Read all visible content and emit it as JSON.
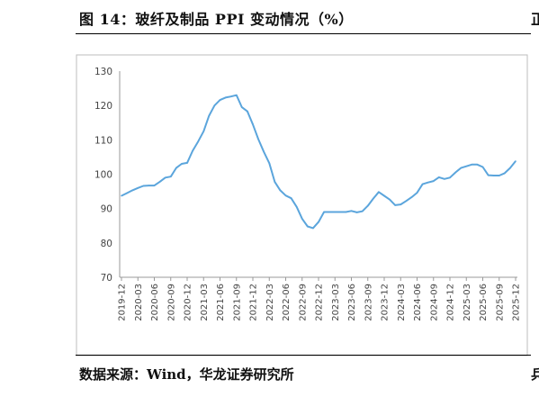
{
  "figure": {
    "title": "图 14：玻纤及制品 PPI 变动情况（%）",
    "source": "数据来源：Wind，华龙证券研究所",
    "right_clip_top": "正",
    "right_clip_bottom": "兵"
  },
  "chart_data": {
    "type": "line",
    "title": "",
    "xlabel": "",
    "ylabel": "",
    "ylim": [
      70,
      130
    ],
    "yticks": [
      70,
      80,
      90,
      100,
      110,
      120,
      130
    ],
    "grid": false,
    "legend": "none",
    "line_color": "#5BA5DC",
    "xtick_labels": [
      "2019-12",
      "2020-03",
      "2020-06",
      "2020-09",
      "2020-12",
      "2021-03",
      "2021-06",
      "2021-09",
      "2021-12",
      "2022-03",
      "2022-06",
      "2022-09",
      "2022-12",
      "2023-03",
      "2023-06",
      "2023-09",
      "2023-12",
      "2024-03",
      "2024-06",
      "2024-09",
      "2024-12",
      "2025-03",
      "2025-06",
      "2025-09",
      "2025-12"
    ],
    "series": [
      {
        "x": [
          "2019-12",
          "2020-01",
          "2020-02",
          "2020-03",
          "2020-04",
          "2020-05",
          "2020-06",
          "2020-07",
          "2020-08",
          "2020-09",
          "2020-10",
          "2020-11",
          "2020-12",
          "2021-01",
          "2021-02",
          "2021-03",
          "2021-04",
          "2021-05",
          "2021-06",
          "2021-07",
          "2021-08",
          "2021-09",
          "2021-10",
          "2021-11",
          "2021-12",
          "2022-01",
          "2022-02",
          "2022-03",
          "2022-04",
          "2022-05",
          "2022-06",
          "2022-07",
          "2022-08",
          "2022-09",
          "2022-10",
          "2022-11",
          "2022-12",
          "2023-01",
          "2023-02",
          "2023-03",
          "2023-04",
          "2023-05",
          "2023-06",
          "2023-07",
          "2023-08",
          "2023-09",
          "2023-10",
          "2023-11",
          "2023-12",
          "2024-01",
          "2024-02",
          "2024-03",
          "2024-04",
          "2024-05",
          "2024-06",
          "2024-07",
          "2024-08",
          "2024-09",
          "2024-10",
          "2024-11",
          "2024-12",
          "2025-01",
          "2025-02",
          "2025-03",
          "2025-04",
          "2025-05",
          "2025-06",
          "2025-07",
          "2025-08",
          "2025-09",
          "2025-10",
          "2025-11",
          "2025-12"
        ],
        "values": [
          93.7,
          94.5,
          95.3,
          96.0,
          96.6,
          96.7,
          96.7,
          97.8,
          99.0,
          99.3,
          101.8,
          103.0,
          103.3,
          106.8,
          109.5,
          112.5,
          117.0,
          120.0,
          121.6,
          122.3,
          122.6,
          123.0,
          119.5,
          118.3,
          114.5,
          110.2,
          106.5,
          103.2,
          97.8,
          95.3,
          93.8,
          93.0,
          90.5,
          87.0,
          84.8,
          84.3,
          86.1,
          89.0,
          89.0,
          89.0,
          89.0,
          89.0,
          89.3,
          88.9,
          89.2,
          90.8,
          92.9,
          94.8,
          93.7,
          92.6,
          91.0,
          91.2,
          92.2,
          93.3,
          94.6,
          97.1,
          97.6,
          98.0,
          99.1,
          98.6,
          99.0,
          100.5,
          101.8,
          102.3,
          102.8,
          102.8,
          102.1,
          99.7,
          99.6,
          99.6,
          100.3,
          101.8,
          103.8
        ]
      }
    ]
  }
}
